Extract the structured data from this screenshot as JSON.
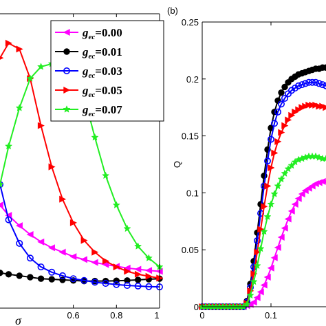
{
  "chart_data": [
    {
      "type": "line",
      "panel_label": "",
      "xlabel": "σ",
      "ylabel": "",
      "xlim": [
        0.26,
        1.0
      ],
      "ylim": [
        0,
        1
      ],
      "x_ticks": [
        "0.6",
        "0.8",
        "1"
      ],
      "y_ticks": [],
      "legend_position": "top-right",
      "series": [
        {
          "name": "g_ec = 0.00",
          "legend_prefix": "g",
          "legend_sub": "ec",
          "legend_value": "=0.00",
          "color": "#ff00ff",
          "marker": "triangle-left",
          "x": [
            0.26,
            0.3,
            0.35,
            0.4,
            0.45,
            0.5,
            0.55,
            0.6,
            0.65,
            0.7,
            0.75,
            0.8,
            0.85,
            0.9,
            0.95,
            1.0
          ],
          "y": [
            0.35,
            0.315,
            0.28,
            0.25,
            0.225,
            0.205,
            0.19,
            0.175,
            0.165,
            0.155,
            0.148,
            0.142,
            0.136,
            0.132,
            0.128,
            0.125
          ]
        },
        {
          "name": "g_ec = 0.01",
          "legend_prefix": "g",
          "legend_sub": "ec",
          "legend_value": "=0.01",
          "color": "#000000",
          "marker": "circle",
          "x": [
            0.26,
            0.3,
            0.35,
            0.4,
            0.45,
            0.5,
            0.55,
            0.6,
            0.65,
            0.7,
            0.75,
            0.8,
            0.85,
            0.9,
            0.95,
            1.0
          ],
          "y": [
            0.12,
            0.115,
            0.11,
            0.105,
            0.1,
            0.098,
            0.096,
            0.094,
            0.092,
            0.092,
            0.092,
            0.093,
            0.094,
            0.096,
            0.098,
            0.1
          ]
        },
        {
          "name": "g_ec = 0.03",
          "legend_prefix": "g",
          "legend_sub": "ec",
          "legend_value": "=0.03",
          "color": "#0000ff",
          "marker": "open-circle",
          "x": [
            0.26,
            0.3,
            0.35,
            0.4,
            0.45,
            0.5,
            0.55,
            0.6,
            0.65,
            0.7,
            0.75,
            0.8,
            0.85,
            0.9,
            0.95,
            1.0
          ],
          "y": [
            0.42,
            0.3,
            0.22,
            0.17,
            0.14,
            0.122,
            0.11,
            0.1,
            0.094,
            0.088,
            0.084,
            0.08,
            0.077,
            0.075,
            0.073,
            0.072
          ]
        },
        {
          "name": "g_ec = 0.05",
          "legend_prefix": "g",
          "legend_sub": "ec",
          "legend_value": "=0.05",
          "color": "#ff0000",
          "marker": "triangle-right",
          "x": [
            0.26,
            0.3,
            0.35,
            0.4,
            0.45,
            0.5,
            0.55,
            0.6,
            0.65,
            0.7,
            0.75,
            0.8,
            0.85,
            0.9,
            0.95,
            1.0
          ],
          "y": [
            0.85,
            0.9,
            0.88,
            0.78,
            0.62,
            0.48,
            0.37,
            0.29,
            0.23,
            0.19,
            0.16,
            0.14,
            0.125,
            0.115,
            0.108,
            0.102
          ]
        },
        {
          "name": "g_ec = 0.07",
          "legend_prefix": "g",
          "legend_sub": "ec",
          "legend_value": "=0.07",
          "color": "#22ee22",
          "marker": "star",
          "x": [
            0.26,
            0.3,
            0.35,
            0.4,
            0.45,
            0.5,
            0.55,
            0.6,
            0.65,
            0.7,
            0.75,
            0.8,
            0.85,
            0.9,
            0.95,
            1.0
          ],
          "y": [
            0.42,
            0.55,
            0.68,
            0.78,
            0.82,
            0.83,
            0.83,
            0.82,
            0.72,
            0.58,
            0.45,
            0.35,
            0.27,
            0.21,
            0.17,
            0.14
          ]
        }
      ]
    },
    {
      "type": "line",
      "panel_label": "(b)",
      "xlabel": "",
      "ylabel": "Q",
      "xlim": [
        0,
        0.18
      ],
      "ylim": [
        0,
        0.25
      ],
      "x_ticks": [
        "0",
        "0.1"
      ],
      "y_ticks": [
        "0",
        "0.05",
        "0.1",
        "0.15",
        "0.2",
        "0.25"
      ],
      "series": [
        {
          "name": "g_ec = 0.00",
          "color": "#ff00ff",
          "marker": "triangle-left",
          "x": [
            0,
            0.005,
            0.01,
            0.015,
            0.02,
            0.025,
            0.03,
            0.035,
            0.04,
            0.045,
            0.05,
            0.055,
            0.06,
            0.065,
            0.07,
            0.075,
            0.08,
            0.085,
            0.09,
            0.095,
            0.1,
            0.105,
            0.11,
            0.115,
            0.12,
            0.125,
            0.13,
            0.135,
            0.14,
            0.145,
            0.15,
            0.155,
            0.16,
            0.165,
            0.17,
            0.175,
            0.18
          ],
          "y": [
            0,
            0,
            0,
            0,
            0,
            0,
            0,
            0,
            0,
            0,
            0,
            0,
            0,
            0.001,
            0.002,
            0.004,
            0.008,
            0.013,
            0.019,
            0.026,
            0.034,
            0.043,
            0.052,
            0.061,
            0.069,
            0.077,
            0.084,
            0.09,
            0.095,
            0.099,
            0.102,
            0.104,
            0.106,
            0.108,
            0.109,
            0.11,
            0.11
          ]
        },
        {
          "name": "g_ec = 0.01",
          "color": "#000000",
          "marker": "circle",
          "x": [
            0,
            0.005,
            0.01,
            0.015,
            0.02,
            0.025,
            0.03,
            0.035,
            0.04,
            0.045,
            0.05,
            0.055,
            0.06,
            0.065,
            0.07,
            0.075,
            0.08,
            0.085,
            0.09,
            0.095,
            0.1,
            0.105,
            0.11,
            0.115,
            0.12,
            0.125,
            0.13,
            0.135,
            0.14,
            0.145,
            0.15,
            0.155,
            0.16,
            0.165,
            0.17,
            0.175,
            0.18
          ],
          "y": [
            0,
            0,
            0,
            0,
            0,
            0,
            0,
            0,
            0,
            0,
            0,
            0,
            0,
            0.005,
            0.02,
            0.04,
            0.065,
            0.09,
            0.115,
            0.138,
            0.157,
            0.171,
            0.181,
            0.188,
            0.193,
            0.197,
            0.2,
            0.202,
            0.204,
            0.205,
            0.206,
            0.207,
            0.208,
            0.209,
            0.209,
            0.21,
            0.21
          ]
        },
        {
          "name": "g_ec = 0.03",
          "color": "#0000ff",
          "marker": "open-circle",
          "x": [
            0,
            0.005,
            0.01,
            0.015,
            0.02,
            0.025,
            0.03,
            0.035,
            0.04,
            0.045,
            0.05,
            0.055,
            0.06,
            0.065,
            0.07,
            0.075,
            0.08,
            0.085,
            0.09,
            0.095,
            0.1,
            0.105,
            0.11,
            0.115,
            0.12,
            0.125,
            0.13,
            0.135,
            0.14,
            0.145,
            0.15,
            0.155,
            0.16,
            0.165,
            0.17,
            0.175,
            0.18
          ],
          "y": [
            0,
            0,
            0,
            0,
            0,
            0,
            0,
            0,
            0,
            0,
            0,
            0,
            0,
            0.004,
            0.017,
            0.035,
            0.058,
            0.082,
            0.106,
            0.128,
            0.147,
            0.161,
            0.171,
            0.178,
            0.183,
            0.187,
            0.19,
            0.192,
            0.194,
            0.195,
            0.196,
            0.197,
            0.197,
            0.197,
            0.196,
            0.195,
            0.194
          ]
        },
        {
          "name": "g_ec = 0.05",
          "color": "#ff0000",
          "marker": "triangle-right",
          "x": [
            0,
            0.005,
            0.01,
            0.015,
            0.02,
            0.025,
            0.03,
            0.035,
            0.04,
            0.045,
            0.05,
            0.055,
            0.06,
            0.065,
            0.07,
            0.075,
            0.08,
            0.085,
            0.09,
            0.095,
            0.1,
            0.105,
            0.11,
            0.115,
            0.12,
            0.125,
            0.13,
            0.135,
            0.14,
            0.145,
            0.15,
            0.155,
            0.16,
            0.165,
            0.17,
            0.175,
            0.18
          ],
          "y": [
            0,
            0,
            0,
            0,
            0,
            0,
            0,
            0,
            0,
            0,
            0,
            0,
            0,
            0.003,
            0.014,
            0.029,
            0.048,
            0.068,
            0.088,
            0.106,
            0.122,
            0.135,
            0.145,
            0.153,
            0.159,
            0.164,
            0.168,
            0.171,
            0.173,
            0.175,
            0.176,
            0.177,
            0.177,
            0.177,
            0.176,
            0.176,
            0.175
          ]
        },
        {
          "name": "g_ec = 0.07",
          "color": "#22ee22",
          "marker": "star",
          "x": [
            0,
            0.005,
            0.01,
            0.015,
            0.02,
            0.025,
            0.03,
            0.035,
            0.04,
            0.045,
            0.05,
            0.055,
            0.06,
            0.065,
            0.07,
            0.075,
            0.08,
            0.085,
            0.09,
            0.095,
            0.1,
            0.105,
            0.11,
            0.115,
            0.12,
            0.125,
            0.13,
            0.135,
            0.14,
            0.145,
            0.15,
            0.155,
            0.16,
            0.165,
            0.17,
            0.175,
            0.18
          ],
          "y": [
            0,
            0,
            0,
            0,
            0,
            0,
            0,
            0,
            0,
            0,
            0,
            0,
            0,
            0.002,
            0.01,
            0.022,
            0.036,
            0.051,
            0.066,
            0.079,
            0.09,
            0.099,
            0.106,
            0.112,
            0.117,
            0.121,
            0.124,
            0.127,
            0.129,
            0.13,
            0.131,
            0.132,
            0.132,
            0.132,
            0.131,
            0.13,
            0.13
          ]
        }
      ]
    }
  ]
}
